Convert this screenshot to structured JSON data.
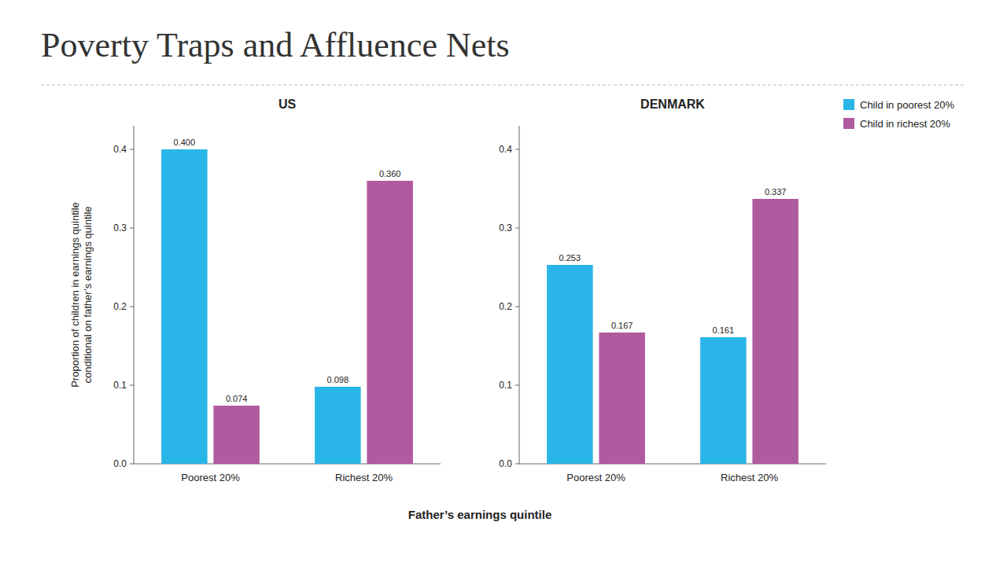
{
  "title": "Poverty Traps and Affluence Nets",
  "xlabel": "Father’s earnings quintile",
  "chart_data": [
    {
      "type": "bar",
      "title": "US",
      "ylabel": "Proportion of children in earnings quintile\nconditional on father’s earnings quintile",
      "categories": [
        "Poorest 20%",
        "Richest 20%"
      ],
      "series": [
        {
          "name": "Child in poorest 20%",
          "color": "#29b5e8",
          "values": [
            0.4,
            0.098
          ],
          "value_labels": [
            "0.400",
            "0.098"
          ]
        },
        {
          "name": "Child in richest 20%",
          "color": "#b05aa0",
          "values": [
            0.074,
            0.36
          ],
          "value_labels": [
            "0.074",
            "0.360"
          ]
        }
      ],
      "ylim": [
        0,
        0.43
      ],
      "yticks": [
        {
          "value": 0,
          "label": "0.0"
        },
        0.1,
        0.2,
        0.3,
        0.4
      ],
      "data_labels": true
    },
    {
      "type": "bar",
      "title": "DENMARK",
      "categories": [
        "Poorest 20%",
        "Richest 20%"
      ],
      "series": [
        {
          "name": "Child in poorest 20%",
          "color": "#29b5e8",
          "values": [
            0.253,
            0.161
          ],
          "value_labels": [
            "0.253",
            "0.161"
          ]
        },
        {
          "name": "Child in richest 20%",
          "color": "#b05aa0",
          "values": [
            0.167,
            0.337
          ],
          "value_labels": [
            "0.167",
            "0.337"
          ]
        }
      ],
      "ylim": [
        0,
        0.43
      ],
      "yticks": [
        {
          "value": 0,
          "label": "0.0"
        },
        0.1,
        0.2,
        0.3,
        0.4
      ],
      "data_labels": true,
      "legend": "upper right"
    }
  ]
}
